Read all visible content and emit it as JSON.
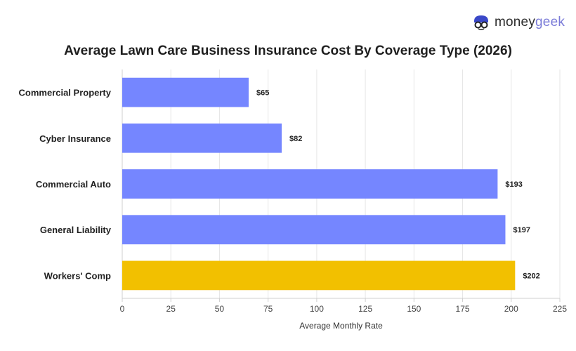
{
  "logo": {
    "text_main": "money",
    "text_accent": "geek"
  },
  "colors": {
    "bar": "#7586ff",
    "highlight": "#f2c000",
    "grid": "#e6e6e6",
    "axis": "#cfcfcf"
  },
  "chart_data": {
    "type": "bar",
    "orientation": "horizontal",
    "title": "Average Lawn Care Business Insurance Cost By Coverage Type (2026)",
    "xlabel": "Average Monthly Rate",
    "ylabel": "",
    "xlim": [
      0,
      225
    ],
    "xticks": [
      0,
      25,
      50,
      75,
      100,
      125,
      150,
      175,
      200,
      225
    ],
    "grid": true,
    "categories": [
      "Commercial Property",
      "Cyber Insurance",
      "Commercial Auto",
      "General Liability",
      "Workers' Comp"
    ],
    "values": [
      65,
      82,
      193,
      197,
      202
    ],
    "value_labels": [
      "$65",
      "$82",
      "$193",
      "$197",
      "$202"
    ],
    "highlighted_category": "Workers' Comp"
  }
}
